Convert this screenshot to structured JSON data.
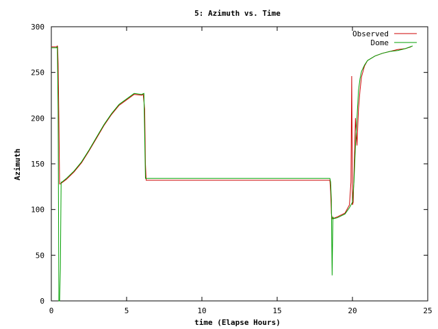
{
  "chart_data": {
    "type": "line",
    "title": "5: Azimuth vs. Time",
    "xlabel": "time (Elapse Hours)",
    "ylabel": "Azimuth",
    "xlim": [
      0,
      25
    ],
    "ylim": [
      0,
      300
    ],
    "xticks": [
      0,
      5,
      10,
      15,
      20,
      25
    ],
    "yticks": [
      0,
      50,
      100,
      150,
      200,
      250,
      300
    ],
    "xtick_labels": [
      "0",
      "5",
      "10",
      "15",
      "20",
      "25"
    ],
    "ytick_labels": [
      "0",
      "50",
      "100",
      "150",
      "200",
      "250",
      "300"
    ],
    "grid": false,
    "legend_position": "top-right",
    "series": [
      {
        "name": "Observed",
        "color": "#cc0000",
        "x": [
          0.0,
          0.35,
          0.4,
          0.42,
          0.45,
          0.5,
          0.55,
          0.6,
          1.0,
          1.5,
          2.0,
          2.5,
          3.0,
          3.5,
          4.0,
          4.5,
          5.0,
          5.5,
          6.0,
          6.1,
          6.2,
          6.25,
          6.3,
          10.0,
          15.0,
          18.5,
          18.55,
          18.6,
          18.65,
          18.7,
          19.0,
          19.5,
          19.8,
          19.9,
          19.95,
          20.0,
          20.05,
          20.2,
          20.3,
          20.4,
          20.5,
          20.6,
          20.8,
          21.0,
          21.5,
          22.0,
          22.5,
          23.0,
          23.5,
          23.9
        ],
        "y": [
          278,
          278,
          279,
          278,
          260,
          200,
          128,
          128,
          133,
          141,
          151,
          164,
          178,
          192,
          204,
          214,
          220,
          226,
          225,
          226,
          210,
          150,
          132,
          132,
          132,
          132,
          120,
          96,
          90,
          90,
          92,
          96,
          105,
          130,
          246,
          105,
          108,
          200,
          170,
          210,
          230,
          245,
          257,
          263,
          268,
          271,
          273,
          275,
          276,
          278
        ]
      },
      {
        "name": "Dome",
        "color": "#00a000",
        "x": [
          0.0,
          0.35,
          0.38,
          0.4,
          0.45,
          0.5,
          0.55,
          0.6,
          0.65,
          0.7,
          1.0,
          1.5,
          2.0,
          2.5,
          3.0,
          3.5,
          4.0,
          4.5,
          5.0,
          5.5,
          6.0,
          6.15,
          6.25,
          6.3,
          10.0,
          15.0,
          18.5,
          18.55,
          18.6,
          18.65,
          18.7,
          18.75,
          19.0,
          19.5,
          19.8,
          20.0,
          20.1,
          20.2,
          20.3,
          20.4,
          20.5,
          20.6,
          20.8,
          21.0,
          21.5,
          22.0,
          22.5,
          23.0,
          23.5,
          24.0
        ],
        "y": [
          277,
          277,
          278,
          277,
          208,
          0,
          0,
          35,
          130,
          130,
          134,
          142,
          152,
          165,
          179,
          193,
          205,
          215,
          221,
          227,
          226,
          227,
          134,
          134,
          134,
          134,
          134,
          130,
          110,
          28,
          92,
          90,
          91,
          95,
          102,
          108,
          130,
          170,
          200,
          230,
          243,
          251,
          258,
          263,
          268,
          271,
          273,
          274,
          276,
          279
        ]
      }
    ]
  }
}
